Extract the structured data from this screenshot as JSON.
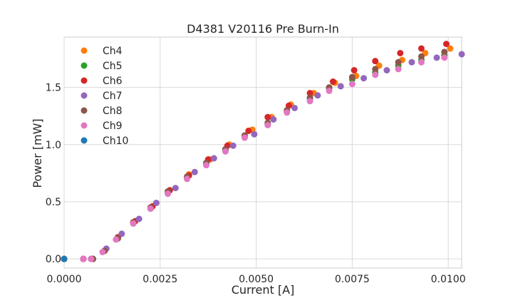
{
  "chart_data": {
    "type": "scatter",
    "title": "D4381 V20116 Pre Burn-In",
    "xlabel": "Current [A]",
    "ylabel": "Power [mW]",
    "xlim": [
      0.0,
      0.01035
    ],
    "ylim": [
      -0.08,
      1.94
    ],
    "x_ticks": [
      0.0,
      0.0025,
      0.005,
      0.0075,
      0.01
    ],
    "x_tick_labels": [
      "0.0000",
      "0.0025",
      "0.0050",
      "0.0075",
      "0.0100"
    ],
    "y_ticks": [
      0.0,
      0.5,
      1.0,
      1.5
    ],
    "y_tick_labels": [
      "0.0",
      "0.5",
      "1.0",
      "1.5"
    ],
    "grid": true,
    "legend_position": "top-left",
    "series": [
      {
        "name": "Ch4",
        "color": "#ff7f0e",
        "x": [
          0,
          0.0005,
          0.00075,
          0.00105,
          0.0014,
          0.0018,
          0.0023,
          0.00275,
          0.00325,
          0.0038,
          0.0043,
          0.0049,
          0.0054,
          0.0059,
          0.0065,
          0.00705,
          0.0076,
          0.0082,
          0.0088,
          0.0094,
          0.01005
        ],
        "y": [
          0,
          0,
          0,
          0.07,
          0.19,
          0.32,
          0.46,
          0.6,
          0.74,
          0.87,
          1.0,
          1.13,
          1.24,
          1.35,
          1.45,
          1.54,
          1.6,
          1.69,
          1.74,
          1.8,
          1.84
        ]
      },
      {
        "name": "Ch5",
        "color": "#2ca02c",
        "x": [
          0,
          0.0005,
          0.00075,
          0.00105,
          0.0014,
          0.0018,
          0.00225,
          0.0027,
          0.0032,
          0.0037,
          0.0042,
          0.0047,
          0.0053,
          0.0058,
          0.0064,
          0.0069,
          0.0075,
          0.0081,
          0.0087,
          0.0093,
          0.0099
        ],
        "y": [
          0,
          0,
          0,
          0.07,
          0.18,
          0.31,
          0.44,
          0.58,
          0.71,
          0.83,
          0.95,
          1.07,
          1.18,
          1.29,
          1.4,
          1.49,
          1.57,
          1.63,
          1.69,
          1.74,
          1.78
        ]
      },
      {
        "name": "Ch6",
        "color": "#d62728",
        "x": [
          0,
          0.0005,
          0.00075,
          0.00105,
          0.0014,
          0.00185,
          0.0023,
          0.00275,
          0.00325,
          0.00375,
          0.00425,
          0.0048,
          0.0053,
          0.00585,
          0.0064,
          0.007,
          0.00755,
          0.0081,
          0.00875,
          0.0093,
          0.00995
        ],
        "y": [
          0,
          0,
          0,
          0.07,
          0.19,
          0.33,
          0.46,
          0.6,
          0.73,
          0.87,
          0.99,
          1.12,
          1.24,
          1.34,
          1.45,
          1.55,
          1.65,
          1.73,
          1.8,
          1.84,
          1.88
        ]
      },
      {
        "name": "Ch7",
        "color": "#9467bd",
        "x": [
          0,
          0.0005,
          0.0007,
          0.0011,
          0.0015,
          0.00195,
          0.0024,
          0.0029,
          0.0034,
          0.0039,
          0.0044,
          0.00495,
          0.00545,
          0.006,
          0.0066,
          0.0072,
          0.0078,
          0.0084,
          0.00905,
          0.0097,
          0.01035
        ],
        "y": [
          0,
          0,
          0,
          0.09,
          0.22,
          0.35,
          0.49,
          0.62,
          0.76,
          0.88,
          0.99,
          1.09,
          1.22,
          1.32,
          1.43,
          1.51,
          1.58,
          1.65,
          1.72,
          1.76,
          1.79
        ]
      },
      {
        "name": "Ch8",
        "color": "#8c564b",
        "x": [
          0,
          0.0005,
          0.00075,
          0.00105,
          0.0014,
          0.0018,
          0.00225,
          0.0027,
          0.0032,
          0.0037,
          0.0042,
          0.0047,
          0.0053,
          0.0058,
          0.0064,
          0.0069,
          0.0075,
          0.0081,
          0.0087,
          0.0093,
          0.0099
        ],
        "y": [
          0,
          0,
          0,
          0.07,
          0.18,
          0.32,
          0.45,
          0.59,
          0.72,
          0.84,
          0.96,
          1.08,
          1.19,
          1.3,
          1.41,
          1.5,
          1.59,
          1.66,
          1.72,
          1.77,
          1.81
        ]
      },
      {
        "name": "Ch9",
        "color": "#e377c2",
        "x": [
          0,
          0.0005,
          0.0007,
          0.001,
          0.00135,
          0.0018,
          0.00225,
          0.0027,
          0.0032,
          0.0037,
          0.0042,
          0.0047,
          0.0053,
          0.0058,
          0.0064,
          0.0069,
          0.0075,
          0.0081,
          0.0087,
          0.0093,
          0.0099
        ],
        "y": [
          0,
          0,
          0,
          0.06,
          0.17,
          0.31,
          0.44,
          0.57,
          0.7,
          0.82,
          0.94,
          1.06,
          1.17,
          1.28,
          1.38,
          1.47,
          1.53,
          1.61,
          1.66,
          1.72,
          1.76
        ]
      },
      {
        "name": "Ch10",
        "color": "#1f77b4",
        "x": [
          0
        ],
        "y": [
          0
        ]
      }
    ]
  }
}
